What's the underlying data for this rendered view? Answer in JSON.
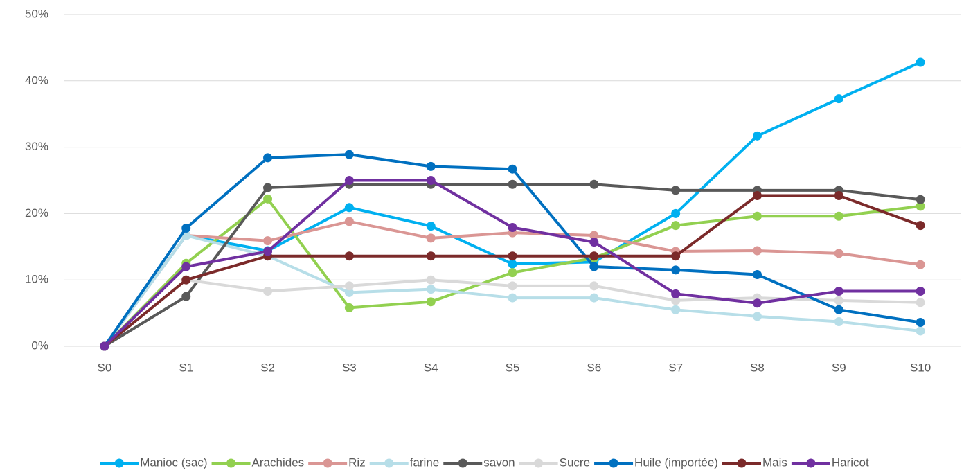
{
  "chart_data": {
    "type": "line",
    "categories": [
      "S0",
      "S1",
      "S2",
      "S3",
      "S4",
      "S5",
      "S6",
      "S7",
      "S8",
      "S9",
      "S10"
    ],
    "series": [
      {
        "name": "Manioc (sac)",
        "color": "#00b0f0",
        "values": [
          0,
          16.7,
          14.4,
          20.9,
          18.1,
          12.4,
          12.7,
          20,
          31.7,
          37.3,
          42.8
        ]
      },
      {
        "name": "Arachides",
        "color": "#92d050",
        "values": [
          0,
          12.5,
          22.2,
          5.8,
          6.7,
          11.1,
          13.3,
          18.2,
          19.6,
          19.6,
          21.1
        ]
      },
      {
        "name": "Riz",
        "color": "#da9694",
        "values": [
          0,
          16.7,
          15.9,
          18.8,
          16.3,
          17.1,
          16.7,
          14.3,
          14.4,
          14.0,
          12.3
        ]
      },
      {
        "name": "farine",
        "color": "#b7dee8",
        "values": [
          0,
          16.7,
          13.6,
          8.1,
          8.6,
          7.3,
          7.3,
          5.5,
          4.5,
          3.7,
          2.3
        ]
      },
      {
        "name": "savon",
        "color": "#595959",
        "values": [
          0,
          7.5,
          23.9,
          24.4,
          24.4,
          24.4,
          24.4,
          23.5,
          23.5,
          23.5,
          22.1
        ]
      },
      {
        "name": "Sucre",
        "color": "#d9d9d9",
        "values": [
          0,
          10,
          8.3,
          9.1,
          10,
          9.1,
          9.1,
          6.9,
          7.3,
          6.9,
          6.6
        ]
      },
      {
        "name": "Huile (importée)",
        "color": "#0070c0",
        "values": [
          0,
          17.8,
          28.4,
          28.9,
          27.1,
          26.7,
          12,
          11.5,
          10.8,
          5.5,
          3.6
        ]
      },
      {
        "name": "Mais",
        "color": "#7b2a2a",
        "values": [
          0,
          10,
          13.6,
          13.6,
          13.6,
          13.6,
          13.6,
          13.6,
          22.7,
          22.7,
          18.2
        ]
      },
      {
        "name": "Haricot",
        "color": "#7030a0",
        "values": [
          0,
          12,
          14.3,
          25,
          25,
          17.9,
          15.7,
          7.9,
          6.5,
          8.3,
          8.3
        ]
      }
    ],
    "ylim": [
      0,
      50
    ],
    "yticks": [
      {
        "value": 0,
        "label": "0%"
      },
      {
        "value": 10,
        "label": "10%"
      },
      {
        "value": 20,
        "label": "20%"
      },
      {
        "value": 30,
        "label": "30%"
      },
      {
        "value": 40,
        "label": "40%"
      },
      {
        "value": 50,
        "label": "50%"
      }
    ],
    "grid": true,
    "legend": "bottom"
  }
}
